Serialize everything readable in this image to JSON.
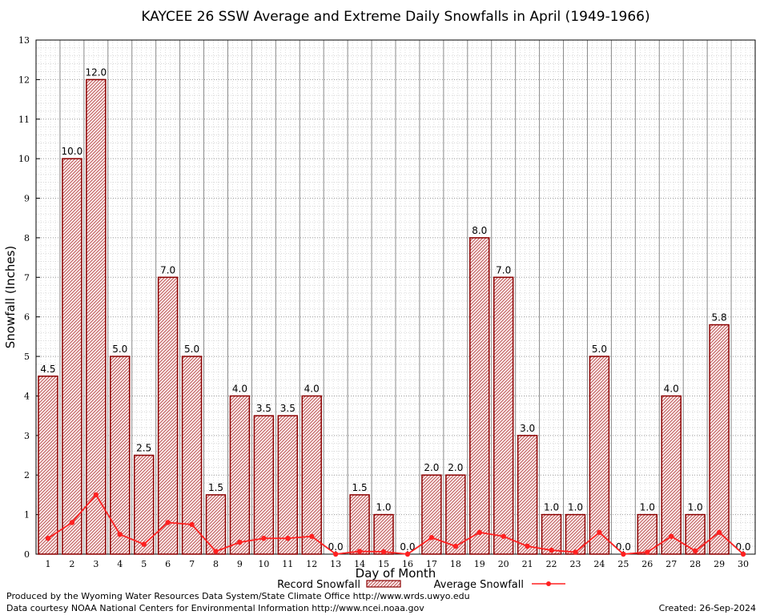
{
  "chart_data": {
    "type": "bar",
    "title": "KAYCEE 26 SSW Average and Extreme Daily Snowfalls in April (1949-1966)",
    "xlabel": "Day of Month",
    "ylabel": "Snowfall (Inches)",
    "ylim": [
      0,
      13
    ],
    "yticks": [
      "0",
      "1",
      "2",
      "3",
      "4",
      "5",
      "6",
      "7",
      "8",
      "9",
      "10",
      "11",
      "12",
      "13"
    ],
    "categories": [
      "1",
      "2",
      "3",
      "4",
      "5",
      "6",
      "7",
      "8",
      "9",
      "10",
      "11",
      "12",
      "13",
      "14",
      "15",
      "16",
      "17",
      "18",
      "19",
      "20",
      "21",
      "22",
      "23",
      "24",
      "25",
      "26",
      "27",
      "28",
      "29",
      "30"
    ],
    "grid": true,
    "legend_position": "bottom",
    "series": [
      {
        "name": "Record Snowfall",
        "type": "bar",
        "color": "#8b0000",
        "values": [
          4.5,
          10.0,
          12.0,
          5.0,
          2.5,
          7.0,
          5.0,
          1.5,
          4.0,
          3.5,
          3.5,
          4.0,
          0.0,
          1.5,
          1.0,
          0.0,
          2.0,
          2.0,
          8.0,
          7.0,
          3.0,
          1.0,
          1.0,
          5.0,
          0.0,
          1.0,
          4.0,
          1.0,
          5.8,
          0.0
        ],
        "labels": [
          "4.5",
          "10.0",
          "12.0",
          "5.0",
          "2.5",
          "7.0",
          "5.0",
          "1.5",
          "4.0",
          "3.5",
          "3.5",
          "4.0",
          "0.0",
          "1.5",
          "1.0",
          "0.0",
          "2.0",
          "2.0",
          "8.0",
          "7.0",
          "3.0",
          "1.0",
          "1.0",
          "5.0",
          "0.0",
          "1.0",
          "4.0",
          "1.0",
          "5.8",
          "0.0"
        ]
      },
      {
        "name": "Average Snowfall",
        "type": "line",
        "color": "#ff2020",
        "values": [
          0.4,
          0.8,
          1.5,
          0.5,
          0.25,
          0.8,
          0.75,
          0.07,
          0.3,
          0.4,
          0.4,
          0.45,
          0.0,
          0.07,
          0.06,
          0.0,
          0.42,
          0.2,
          0.55,
          0.45,
          0.2,
          0.1,
          0.05,
          0.55,
          0.0,
          0.05,
          0.45,
          0.08,
          0.55,
          0.0
        ]
      }
    ]
  },
  "footer": {
    "line1": "Produced by the Wyoming Water Resources Data System/State Climate Office http://www.wrds.uwyo.edu",
    "line2": "Data courtesy NOAA National Centers for Environmental Information http://www.ncei.noaa.gov",
    "created": "Created:  26-Sep-2024"
  }
}
